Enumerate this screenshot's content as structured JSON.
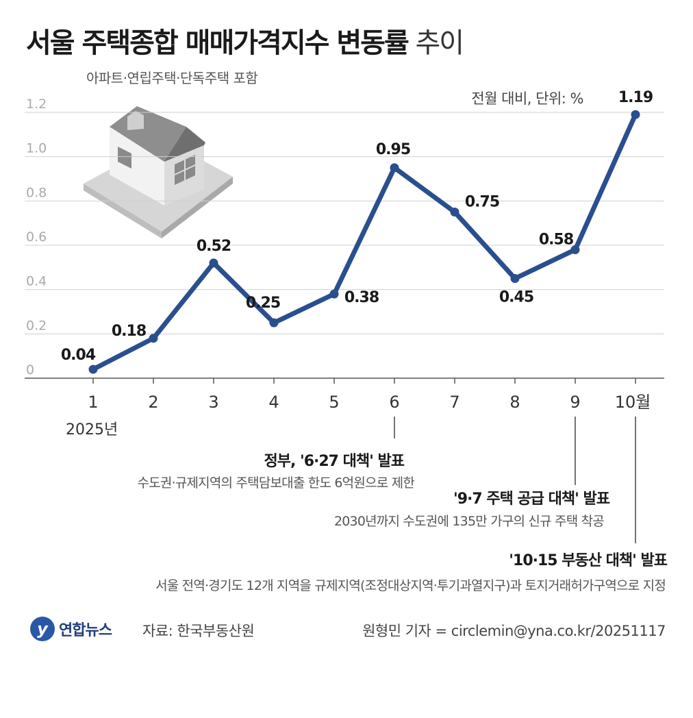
{
  "header": {
    "title_bold": "서울 주택종합 매매가격지수 변동률",
    "title_light": "추이",
    "subtitle": "아파트·연립주택·단독주택 포함",
    "unit": "전월 대비, 단위: %"
  },
  "chart_data": {
    "type": "line",
    "categories": [
      "1",
      "2",
      "3",
      "4",
      "5",
      "6",
      "7",
      "8",
      "9",
      "10월"
    ],
    "year_label": "2025년",
    "values": [
      0.04,
      0.18,
      0.52,
      0.25,
      0.38,
      0.95,
      0.75,
      0.45,
      0.58,
      1.19
    ],
    "value_labels": [
      "0.04",
      "0.18",
      "0.52",
      "0.25",
      "0.38",
      "0.95",
      "0.75",
      "0.45",
      "0.58",
      "1.19"
    ],
    "ylim": [
      0,
      1.2
    ],
    "yticks": [
      0,
      0.2,
      0.4,
      0.6,
      0.8,
      1.0,
      1.2
    ],
    "ytick_labels": [
      "0",
      "0.2",
      "0.4",
      "0.6",
      "0.8",
      "1.0",
      "1.2"
    ],
    "line_color": "#2a4f8f",
    "grid": true
  },
  "annotations": [
    {
      "month_index": 5,
      "title": "정부, '6·27 대책' 발표",
      "desc": "수도권·규제지역의 주택담보대출 한도 6억원으로 제한"
    },
    {
      "month_index": 8,
      "title": "'9·7 주택 공급 대책' 발표",
      "desc": "2030년까지 수도권에 135만 가구의 신규 주택 착공"
    },
    {
      "month_index": 9,
      "title": "'10·15 부동산 대책' 발표",
      "desc": "서울 전역·경기도 12개 지역을 규제지역(조정대상지역·투기과열지구)과 토지거래허가구역으로 지정"
    }
  ],
  "footer": {
    "logo_mark": "y",
    "logo_text": "연합뉴스",
    "source": "자료: 한국부동산원",
    "credit": "원형민 기자 = circlemin@yna.co.kr/20251117"
  },
  "icons": [
    "house-icon"
  ]
}
